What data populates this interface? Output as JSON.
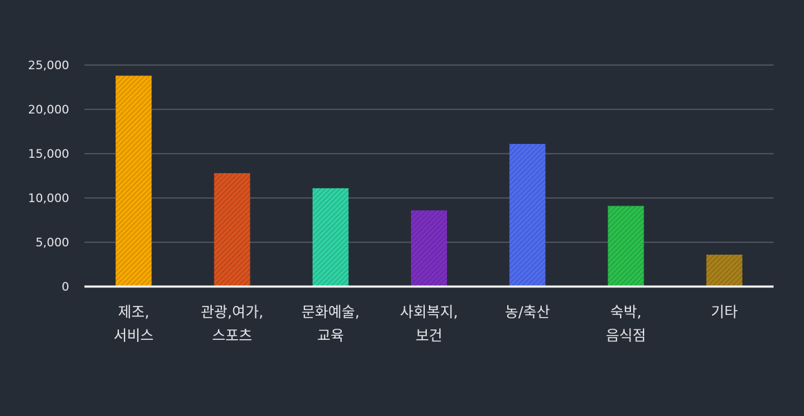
{
  "chart_data": {
    "type": "bar",
    "categories": [
      [
        "제조,",
        "서비스"
      ],
      [
        "관광,여가,",
        "스포츠"
      ],
      [
        "문화예술,",
        "교육"
      ],
      [
        "사회복지,",
        "보건"
      ],
      [
        "농/축산"
      ],
      [
        "숙박,",
        "음식점"
      ],
      [
        "기타"
      ]
    ],
    "values": [
      23800,
      12800,
      11100,
      8600,
      16100,
      9100,
      3600
    ],
    "colors": [
      "#f7a800",
      "#d9531e",
      "#2fd3a3",
      "#7b2fc0",
      "#4f6cf0",
      "#2bbf4c",
      "#a8801a"
    ],
    "yticks": [
      "0",
      "5,000",
      "10,000",
      "15,000",
      "20,000",
      "25,000"
    ],
    "ylim": [
      0,
      25000
    ],
    "grid": true,
    "title": "",
    "xlabel": "",
    "ylabel": ""
  }
}
